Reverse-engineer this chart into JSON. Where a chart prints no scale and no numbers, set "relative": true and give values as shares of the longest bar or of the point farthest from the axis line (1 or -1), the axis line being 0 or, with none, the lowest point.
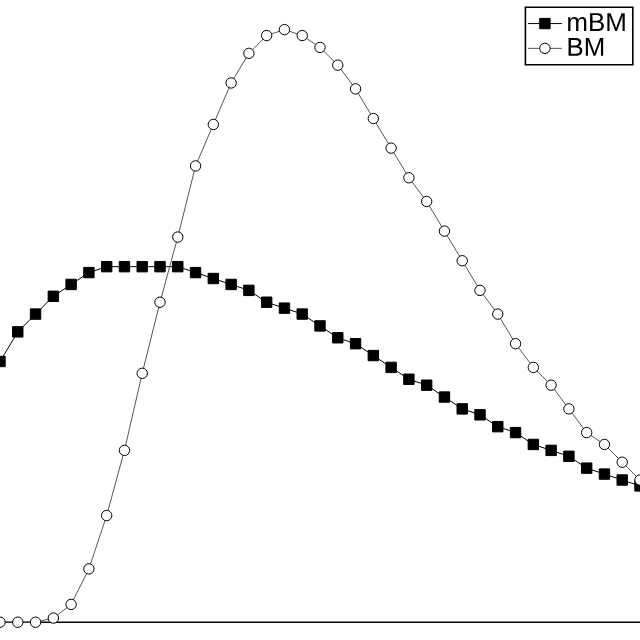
{
  "chart_data": {
    "type": "line",
    "relative": true,
    "categories": [
      null,
      null,
      null,
      null,
      null,
      null,
      null,
      null,
      null,
      null,
      null,
      null,
      null,
      null,
      null,
      null,
      null,
      null,
      null,
      null,
      null,
      null,
      null,
      null,
      null,
      null,
      null,
      null,
      null,
      null,
      null,
      null,
      null,
      null,
      null,
      null,
      null
    ],
    "legend": "top right",
    "line_style": "solid",
    "series": [
      {
        "name": "mBM",
        "color": "#000000",
        "marker": "square",
        "values": [
          0.44,
          0.49,
          0.52,
          0.55,
          0.57,
          0.59,
          0.6,
          0.6,
          0.6,
          0.6,
          0.6,
          0.59,
          0.58,
          0.57,
          0.56,
          0.54,
          0.53,
          0.52,
          0.5,
          0.48,
          0.47,
          0.45,
          0.43,
          0.41,
          0.4,
          0.38,
          0.36,
          0.35,
          0.33,
          0.32,
          0.3,
          0.29,
          0.28,
          0.26,
          0.25,
          0.24,
          0.23
        ]
      },
      {
        "name": "BM",
        "color": "#555555",
        "marker": "circle",
        "values": [
          0,
          0,
          0,
          0.007,
          0.03,
          0.09,
          0.18,
          0.29,
          0.42,
          0.54,
          0.65,
          0.77,
          0.84,
          0.91,
          0.96,
          0.99,
          1,
          0.99,
          0.97,
          0.94,
          0.9,
          0.85,
          0.8,
          0.75,
          0.71,
          0.66,
          0.61,
          0.56,
          0.52,
          0.47,
          0.43,
          0.4,
          0.36,
          0.32,
          0.3,
          0.27,
          0.24
        ]
      }
    ]
  }
}
